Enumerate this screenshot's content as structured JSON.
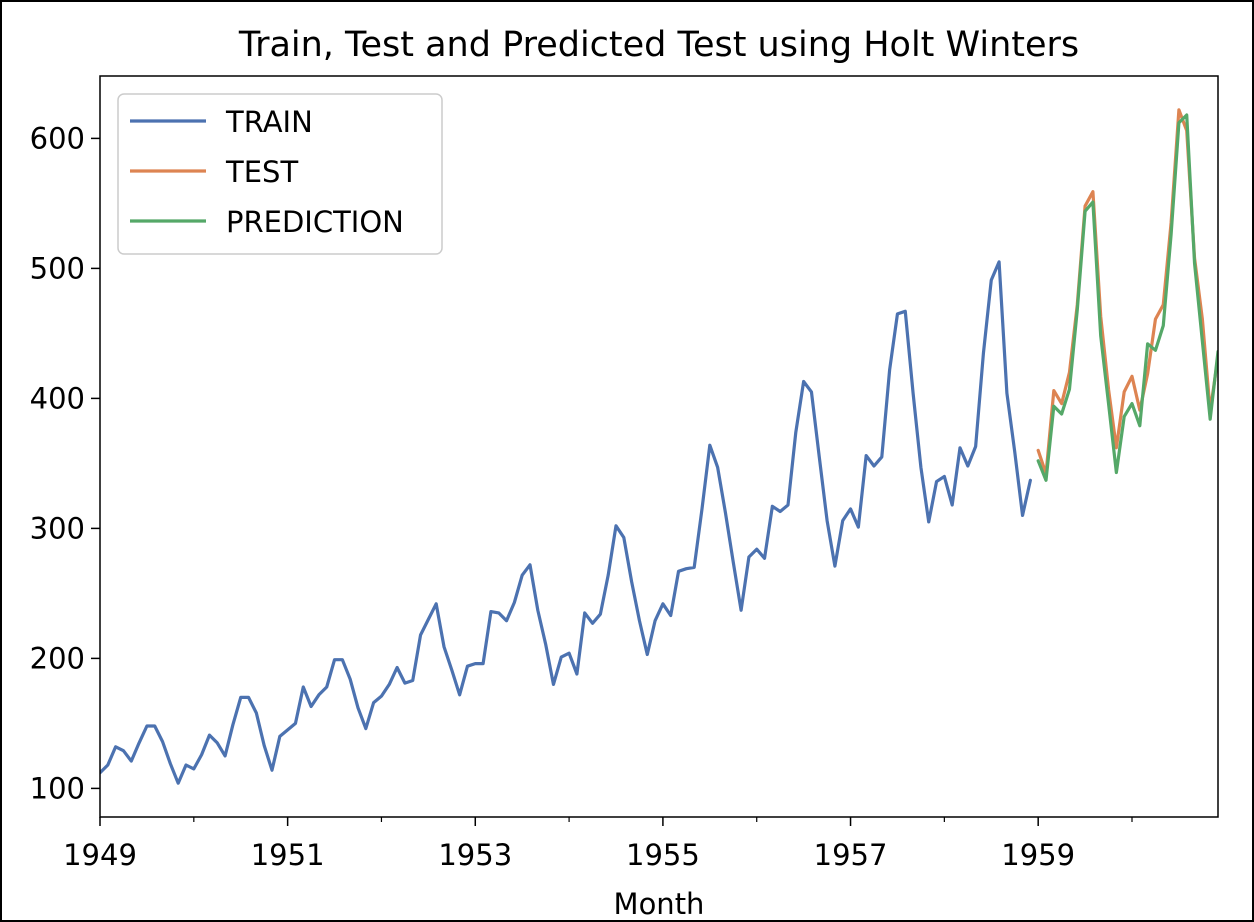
{
  "chart_data": {
    "type": "line",
    "title": "Train, Test and Predicted Test using Holt Winters",
    "xlabel": "Month",
    "ylabel": "",
    "xlim": [
      1949.0,
      1960.9167
    ],
    "ylim": [
      78,
      648
    ],
    "grid": false,
    "legend_position": "top-left",
    "x_ticks": [
      {
        "value": 1949,
        "label": "1949"
      },
      {
        "value": 1951,
        "label": "1951"
      },
      {
        "value": 1953,
        "label": "1953"
      },
      {
        "value": 1955,
        "label": "1955"
      },
      {
        "value": 1957,
        "label": "1957"
      },
      {
        "value": 1959,
        "label": "1959"
      }
    ],
    "x_minor_ticks": [
      1950,
      1952,
      1954,
      1956,
      1958,
      1960
    ],
    "y_ticks": [
      {
        "value": 100,
        "label": "100"
      },
      {
        "value": 200,
        "label": "200"
      },
      {
        "value": 300,
        "label": "300"
      },
      {
        "value": 400,
        "label": "400"
      },
      {
        "value": 500,
        "label": "500"
      },
      {
        "value": 600,
        "label": "600"
      }
    ],
    "series": [
      {
        "name": "TRAIN",
        "color": "#4c72b0",
        "start": 1949.0,
        "step": 0.083333,
        "values": [
          112,
          118,
          132,
          129,
          121,
          135,
          148,
          148,
          136,
          119,
          104,
          118,
          115,
          126,
          141,
          135,
          125,
          149,
          170,
          170,
          158,
          133,
          114,
          140,
          145,
          150,
          178,
          163,
          172,
          178,
          199,
          199,
          184,
          162,
          146,
          166,
          171,
          180,
          193,
          181,
          183,
          218,
          230,
          242,
          209,
          191,
          172,
          194,
          196,
          196,
          236,
          235,
          229,
          243,
          264,
          272,
          237,
          211,
          180,
          201,
          204,
          188,
          235,
          227,
          234,
          264,
          302,
          293,
          259,
          229,
          203,
          229,
          242,
          233,
          267,
          269,
          270,
          315,
          364,
          347,
          312,
          274,
          237,
          278,
          284,
          277,
          317,
          313,
          318,
          374,
          413,
          405,
          355,
          306,
          271,
          306,
          315,
          301,
          356,
          348,
          355,
          422,
          465,
          467,
          404,
          347,
          305,
          336,
          340,
          318,
          362,
          348,
          363,
          435,
          491,
          505,
          404,
          359,
          310,
          337
        ]
      },
      {
        "name": "TEST",
        "color": "#dd8452",
        "start": 1959.0,
        "step": 0.083333,
        "values": [
          360,
          342,
          406,
          396,
          420,
          472,
          548,
          559,
          463,
          407,
          362,
          405,
          417,
          391,
          419,
          461,
          472,
          535,
          622,
          606,
          508,
          461,
          390,
          432
        ]
      },
      {
        "name": "PREDICTION",
        "color": "#55a868",
        "start": 1959.0,
        "step": 0.083333,
        "values": [
          352,
          337,
          394,
          388,
          407,
          468,
          544,
          551,
          448,
          396,
          343,
          386,
          396,
          379,
          442,
          437,
          456,
          526,
          612,
          618,
          504,
          444,
          384,
          436
        ]
      }
    ]
  }
}
